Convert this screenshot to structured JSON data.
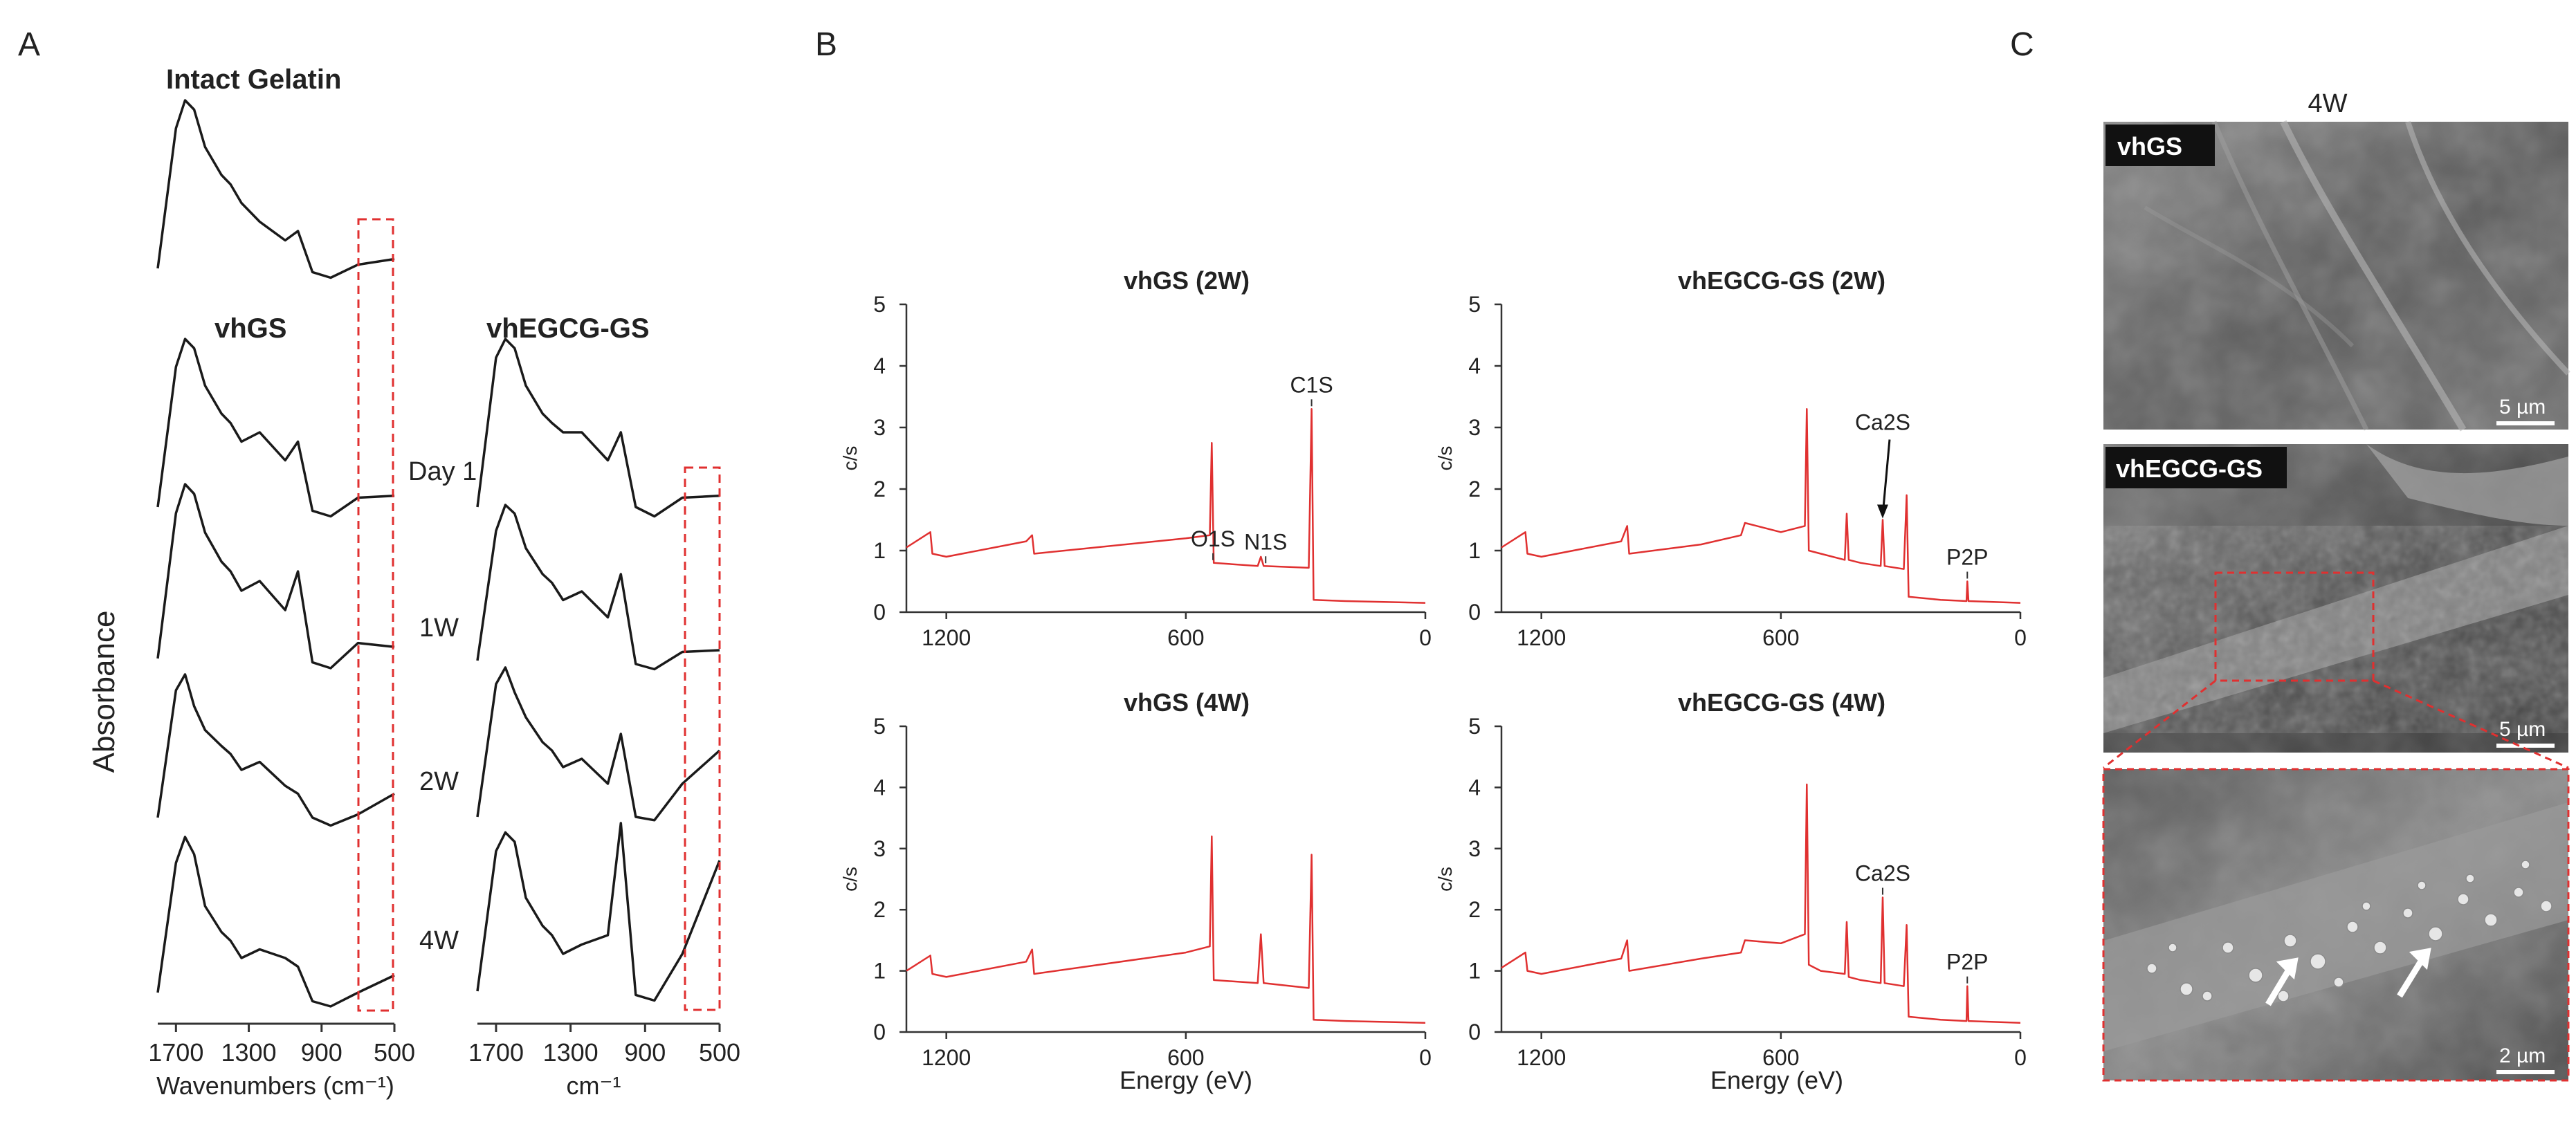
{
  "panels": {
    "a": "A",
    "b": "B",
    "c": "C"
  },
  "colors": {
    "ftir_line": "#1a1a1a",
    "xps_line": "#e03030",
    "highlight_box": "#e03030",
    "sem_bg": "#6a6a6a"
  },
  "ftir": {
    "titles": {
      "intact": "Intact Gelatin",
      "vhgs": "vhGS",
      "vhegcg": "vhEGCG-GS"
    },
    "ylabel": "Absorbance",
    "time_labels": [
      "Day 1",
      "1W",
      "2W",
      "4W"
    ],
    "ticks": [
      "1700",
      "1300",
      "900",
      "500"
    ],
    "tick_values": [
      1700,
      1300,
      900,
      500
    ],
    "xlabel_left": "Wavenumbers (cm⁻¹)",
    "xlabel_right": "cm⁻¹",
    "highlight_region_cm": [
      700,
      500
    ]
  },
  "chart_data": [
    {
      "type": "line",
      "title": "Intact Gelatin",
      "xlabel": "Wavenumbers (cm⁻¹)",
      "ylabel": "Absorbance",
      "xlim": [
        1800,
        500
      ],
      "series": [
        {
          "name": "Intact Gelatin",
          "x": [
            1800,
            1700,
            1650,
            1600,
            1540,
            1450,
            1400,
            1340,
            1240,
            1100,
            1030,
            950,
            850,
            700,
            500
          ],
          "values": [
            0.1,
            0.85,
            1.0,
            0.95,
            0.75,
            0.6,
            0.55,
            0.45,
            0.35,
            0.25,
            0.3,
            0.08,
            0.05,
            0.12,
            0.15
          ]
        }
      ]
    },
    {
      "type": "line",
      "title": "vhGS",
      "xlabel": "Wavenumbers (cm⁻¹)",
      "ylabel": "Absorbance",
      "xlim": [
        1800,
        500
      ],
      "series": [
        {
          "name": "Day 1",
          "x": [
            1800,
            1700,
            1650,
            1600,
            1540,
            1450,
            1400,
            1340,
            1240,
            1100,
            1030,
            950,
            850,
            700,
            500
          ],
          "values": [
            0.1,
            0.85,
            1.0,
            0.95,
            0.75,
            0.6,
            0.55,
            0.45,
            0.5,
            0.35,
            0.45,
            0.08,
            0.05,
            0.15,
            0.16
          ]
        },
        {
          "name": "1W",
          "x": [
            1800,
            1700,
            1650,
            1600,
            1540,
            1450,
            1400,
            1340,
            1240,
            1100,
            1030,
            950,
            850,
            700,
            500
          ],
          "values": [
            0.1,
            0.85,
            1.0,
            0.95,
            0.75,
            0.6,
            0.55,
            0.45,
            0.5,
            0.35,
            0.55,
            0.08,
            0.05,
            0.18,
            0.16
          ]
        },
        {
          "name": "2W",
          "x": [
            1800,
            1700,
            1650,
            1600,
            1540,
            1450,
            1400,
            1340,
            1240,
            1100,
            1030,
            950,
            850,
            700,
            500
          ],
          "values": [
            0.1,
            0.9,
            1.0,
            0.8,
            0.65,
            0.55,
            0.5,
            0.4,
            0.45,
            0.3,
            0.25,
            0.1,
            0.05,
            0.12,
            0.25
          ]
        },
        {
          "name": "4W",
          "x": [
            1800,
            1700,
            1650,
            1600,
            1540,
            1450,
            1400,
            1340,
            1240,
            1100,
            1030,
            950,
            850,
            700,
            500
          ],
          "values": [
            0.1,
            0.85,
            1.0,
            0.9,
            0.6,
            0.45,
            0.4,
            0.3,
            0.35,
            0.3,
            0.25,
            0.05,
            0.02,
            0.1,
            0.2
          ]
        }
      ]
    },
    {
      "type": "line",
      "title": "vhEGCG-GS",
      "xlabel": "cm⁻¹",
      "ylabel": "Absorbance",
      "xlim": [
        1800,
        500
      ],
      "series": [
        {
          "name": "Day 1",
          "x": [
            1800,
            1700,
            1650,
            1600,
            1540,
            1450,
            1400,
            1340,
            1240,
            1100,
            1030,
            950,
            850,
            700,
            500
          ],
          "values": [
            0.1,
            0.9,
            1.0,
            0.95,
            0.75,
            0.6,
            0.55,
            0.5,
            0.5,
            0.35,
            0.5,
            0.1,
            0.05,
            0.15,
            0.16
          ]
        },
        {
          "name": "1W",
          "x": [
            1800,
            1700,
            1650,
            1600,
            1540,
            1450,
            1400,
            1340,
            1240,
            1100,
            1030,
            950,
            850,
            700,
            500
          ],
          "values": [
            0.1,
            0.85,
            1.0,
            0.95,
            0.75,
            0.6,
            0.55,
            0.45,
            0.5,
            0.35,
            0.6,
            0.08,
            0.05,
            0.15,
            0.16
          ]
        },
        {
          "name": "2W",
          "x": [
            1800,
            1700,
            1650,
            1600,
            1540,
            1450,
            1400,
            1340,
            1240,
            1100,
            1030,
            950,
            850,
            700,
            500
          ],
          "values": [
            0.1,
            0.9,
            1.0,
            0.85,
            0.7,
            0.55,
            0.5,
            0.4,
            0.45,
            0.3,
            0.6,
            0.1,
            0.08,
            0.3,
            0.5
          ]
        },
        {
          "name": "4W",
          "x": [
            1800,
            1700,
            1650,
            1600,
            1540,
            1450,
            1400,
            1340,
            1240,
            1100,
            1030,
            950,
            850,
            700,
            500
          ],
          "values": [
            0.1,
            0.85,
            0.95,
            0.9,
            0.6,
            0.45,
            0.4,
            0.3,
            0.35,
            0.4,
            1.0,
            0.08,
            0.05,
            0.3,
            0.8
          ]
        }
      ]
    },
    {
      "type": "line",
      "title": "vhGS (2W)",
      "xlabel": "",
      "ylabel": "c/s",
      "xlim": [
        1300,
        0
      ],
      "ylim": [
        0,
        5
      ],
      "series": [
        {
          "name": "vhGS (2W)",
          "x": [
            1300,
            1240,
            1235,
            1200,
            1000,
            985,
            980,
            600,
            540,
            535,
            530,
            420,
            412,
            405,
            292,
            285,
            280,
            200,
            0
          ],
          "values": [
            1.05,
            1.3,
            0.95,
            0.9,
            1.15,
            1.25,
            0.95,
            1.2,
            1.25,
            2.75,
            0.8,
            0.75,
            0.9,
            0.75,
            0.72,
            3.3,
            0.2,
            0.18,
            0.15
          ]
        }
      ],
      "annotations": [
        {
          "label": "O1S",
          "x": 532
        },
        {
          "label": "N1S",
          "x": 400
        },
        {
          "label": "C1S",
          "x": 285
        }
      ]
    },
    {
      "type": "line",
      "title": "vhEGCG-GS (2W)",
      "xlabel": "",
      "ylabel": "c/s",
      "xlim": [
        1300,
        0
      ],
      "ylim": [
        0,
        5
      ],
      "series": [
        {
          "name": "vhEGCG-GS (2W)",
          "x": [
            1300,
            1240,
            1235,
            1200,
            1000,
            985,
            980,
            800,
            700,
            690,
            600,
            540,
            535,
            530,
            500,
            440,
            435,
            430,
            400,
            350,
            345,
            340,
            292,
            285,
            280,
            200,
            135,
            133,
            130,
            0
          ],
          "values": [
            1.05,
            1.3,
            0.95,
            0.9,
            1.15,
            1.4,
            0.95,
            1.1,
            1.25,
            1.45,
            1.3,
            1.4,
            3.3,
            1.0,
            0.95,
            0.85,
            1.6,
            0.85,
            0.8,
            0.75,
            1.5,
            0.75,
            0.7,
            1.9,
            0.25,
            0.2,
            0.18,
            0.5,
            0.18,
            0.15
          ]
        }
      ],
      "annotations": [
        {
          "label": "Ca2S",
          "x": 345
        },
        {
          "label": "P2P",
          "x": 133
        }
      ]
    },
    {
      "type": "line",
      "title": "vhGS (4W)",
      "xlabel": "Energy (eV)",
      "ylabel": "c/s",
      "xlim": [
        1300,
        0
      ],
      "ylim": [
        0,
        5
      ],
      "series": [
        {
          "name": "vhGS (4W)",
          "x": [
            1300,
            1240,
            1235,
            1200,
            1000,
            985,
            980,
            600,
            540,
            535,
            530,
            420,
            412,
            405,
            292,
            285,
            280,
            200,
            0
          ],
          "values": [
            1.0,
            1.25,
            0.95,
            0.9,
            1.15,
            1.35,
            0.95,
            1.3,
            1.4,
            3.2,
            0.85,
            0.8,
            1.6,
            0.8,
            0.72,
            2.9,
            0.2,
            0.18,
            0.15
          ]
        }
      ]
    },
    {
      "type": "line",
      "title": "vhEGCG-GS (4W)",
      "xlabel": "Energy (eV)",
      "ylabel": "c/s",
      "xlim": [
        1300,
        0
      ],
      "ylim": [
        0,
        5
      ],
      "series": [
        {
          "name": "vhEGCG-GS (4W)",
          "x": [
            1300,
            1240,
            1235,
            1200,
            1000,
            985,
            980,
            800,
            700,
            690,
            600,
            540,
            535,
            530,
            500,
            440,
            435,
            430,
            400,
            350,
            345,
            340,
            292,
            285,
            280,
            200,
            135,
            133,
            130,
            0
          ],
          "values": [
            1.05,
            1.3,
            1.0,
            0.95,
            1.2,
            1.5,
            1.0,
            1.2,
            1.3,
            1.5,
            1.45,
            1.6,
            4.05,
            1.1,
            1.0,
            0.95,
            1.8,
            0.9,
            0.85,
            0.8,
            2.2,
            0.8,
            0.75,
            1.75,
            0.25,
            0.2,
            0.18,
            0.75,
            0.18,
            0.15
          ]
        }
      ],
      "annotations": [
        {
          "label": "Ca2S",
          "x": 345
        },
        {
          "label": "P2P",
          "x": 133
        }
      ]
    }
  ],
  "xps": {
    "ylabel": "c/s",
    "xlabel": "Energy (eV)",
    "yticks": [
      "0",
      "1",
      "2",
      "3",
      "4",
      "5"
    ],
    "xticks": [
      "1200",
      "600",
      "0"
    ]
  },
  "sem": {
    "header": "4W",
    "panels": [
      {
        "badge": "vhGS",
        "scale": "5 µm"
      },
      {
        "badge": "vhEGCG-GS",
        "scale": "5 µm"
      },
      {
        "badge": "",
        "scale": "2 µm"
      }
    ]
  }
}
